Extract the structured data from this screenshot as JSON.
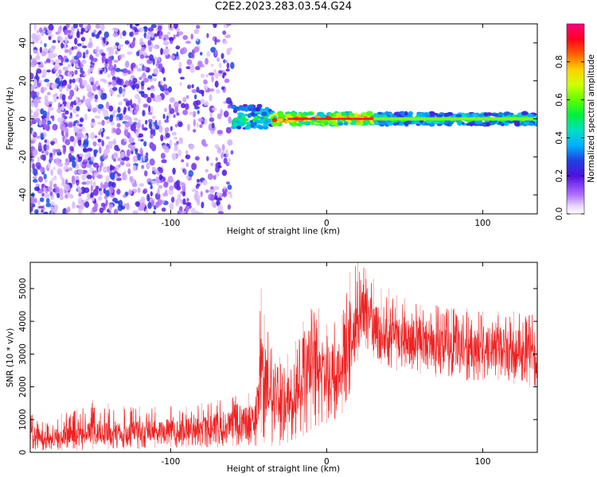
{
  "figure": {
    "title": "C2E2.2023.283.03.54.G24"
  },
  "colors": {
    "snr_line": "#ee2222",
    "colormap": [
      "#ffffff",
      "#e8d8ff",
      "#b070ff",
      "#7020e0",
      "#2020d0",
      "#00b0ff",
      "#00e0c0",
      "#00ff00",
      "#c0ff00",
      "#ffff00",
      "#ff9900",
      "#ff0000",
      "#ff0080"
    ]
  },
  "chart_data": [
    {
      "type": "heatmap",
      "xlabel": "Height of straight line (km)",
      "ylabel": "Frequency (Hz)",
      "xlim": [
        -190,
        135
      ],
      "ylim": [
        -50,
        50
      ],
      "xticks": [
        -100,
        0,
        100
      ],
      "xtick_labels": [
        "-100",
        "0",
        "100"
      ],
      "yticks": [
        -40,
        -20,
        0,
        20,
        40
      ],
      "ytick_labels": [
        "-40",
        "-20",
        "0",
        "20",
        "40"
      ],
      "grid": false,
      "colorbar": {
        "label": "Normalized spectral amplitude",
        "range": [
          0,
          1
        ],
        "ticks": [
          0,
          0.2,
          0.4,
          0.6,
          0.8
        ],
        "tick_labels": [
          "0.0",
          "0.2",
          "0.4",
          "0.6",
          "0.8"
        ]
      },
      "regions": [
        {
          "x_range": [
            -190,
            -60
          ],
          "freq_range": [
            -50,
            50
          ],
          "amplitude": [
            0.05,
            0.3
          ],
          "description_class": "scattered-noise"
        },
        {
          "x_range": [
            -60,
            -35
          ],
          "freq_range": [
            -5,
            7
          ],
          "amplitude": [
            0.3,
            0.6
          ],
          "description_class": "transition"
        },
        {
          "x_range": [
            -35,
            30
          ],
          "freq_range": [
            -3,
            3
          ],
          "amplitude": [
            0.5,
            1.0
          ],
          "description_class": "signal-peak"
        },
        {
          "x_range": [
            30,
            135
          ],
          "freq_range": [
            -3,
            3
          ],
          "amplitude": [
            0.3,
            0.6
          ],
          "description_class": "signal-steady"
        }
      ]
    },
    {
      "type": "line",
      "xlabel": "Height of straight line (km)",
      "ylabel": "SNR (10 * v/v)",
      "xlim": [
        -190,
        135
      ],
      "ylim": [
        0,
        5800
      ],
      "xticks": [
        -100,
        0,
        100
      ],
      "xtick_labels": [
        "-100",
        "0",
        "100"
      ],
      "yticks": [
        0,
        1000,
        2000,
        3000,
        4000,
        5000
      ],
      "ytick_labels": [
        "0",
        "1000",
        "2000",
        "3000",
        "4000",
        "5000"
      ],
      "grid": false,
      "series": [
        {
          "x": [
            -190,
            -180,
            -170,
            -160,
            -150,
            -140,
            -130,
            -120,
            -110,
            -100,
            -90,
            -80,
            -70,
            -60,
            -50,
            -45,
            -42,
            -40,
            -35,
            -30,
            -25,
            -20,
            -15,
            -10,
            -5,
            0,
            5,
            10,
            15,
            20,
            25,
            30,
            35,
            40,
            45,
            50,
            60,
            70,
            80,
            90,
            100,
            110,
            120,
            130,
            135
          ],
          "y": [
            550,
            450,
            500,
            550,
            600,
            600,
            620,
            650,
            700,
            700,
            720,
            750,
            800,
            850,
            950,
            1200,
            2500,
            2200,
            1800,
            1500,
            1600,
            2000,
            2600,
            2800,
            3000,
            2600,
            2500,
            2800,
            3400,
            4100,
            4300,
            4000,
            3700,
            3600,
            3500,
            3600,
            3400,
            3300,
            3300,
            3200,
            3200,
            3200,
            3100,
            3000,
            3000
          ],
          "y_min": [
            50,
            50,
            50,
            50,
            100,
            100,
            100,
            100,
            150,
            150,
            150,
            150,
            150,
            200,
            200,
            200,
            600,
            300,
            200,
            200,
            300,
            400,
            500,
            700,
            800,
            900,
            1000,
            1200,
            1800,
            2800,
            3200,
            2900,
            2700,
            2600,
            2500,
            2600,
            2400,
            2300,
            2300,
            2200,
            2200,
            2200,
            2100,
            2000,
            2000
          ],
          "y_max": [
            1200,
            900,
            1200,
            1300,
            1600,
            1500,
            1400,
            1400,
            1400,
            1400,
            1400,
            1500,
            1600,
            1700,
            1800,
            2000,
            5000,
            4200,
            3200,
            2900,
            3000,
            3400,
            4000,
            4400,
            4400,
            3900,
            4000,
            4200,
            5500,
            5800,
            5600,
            5300,
            5000,
            5000,
            4800,
            4700,
            4500,
            4500,
            4400,
            4400,
            4300,
            4300,
            4300,
            4200,
            4200
          ]
        }
      ]
    }
  ]
}
